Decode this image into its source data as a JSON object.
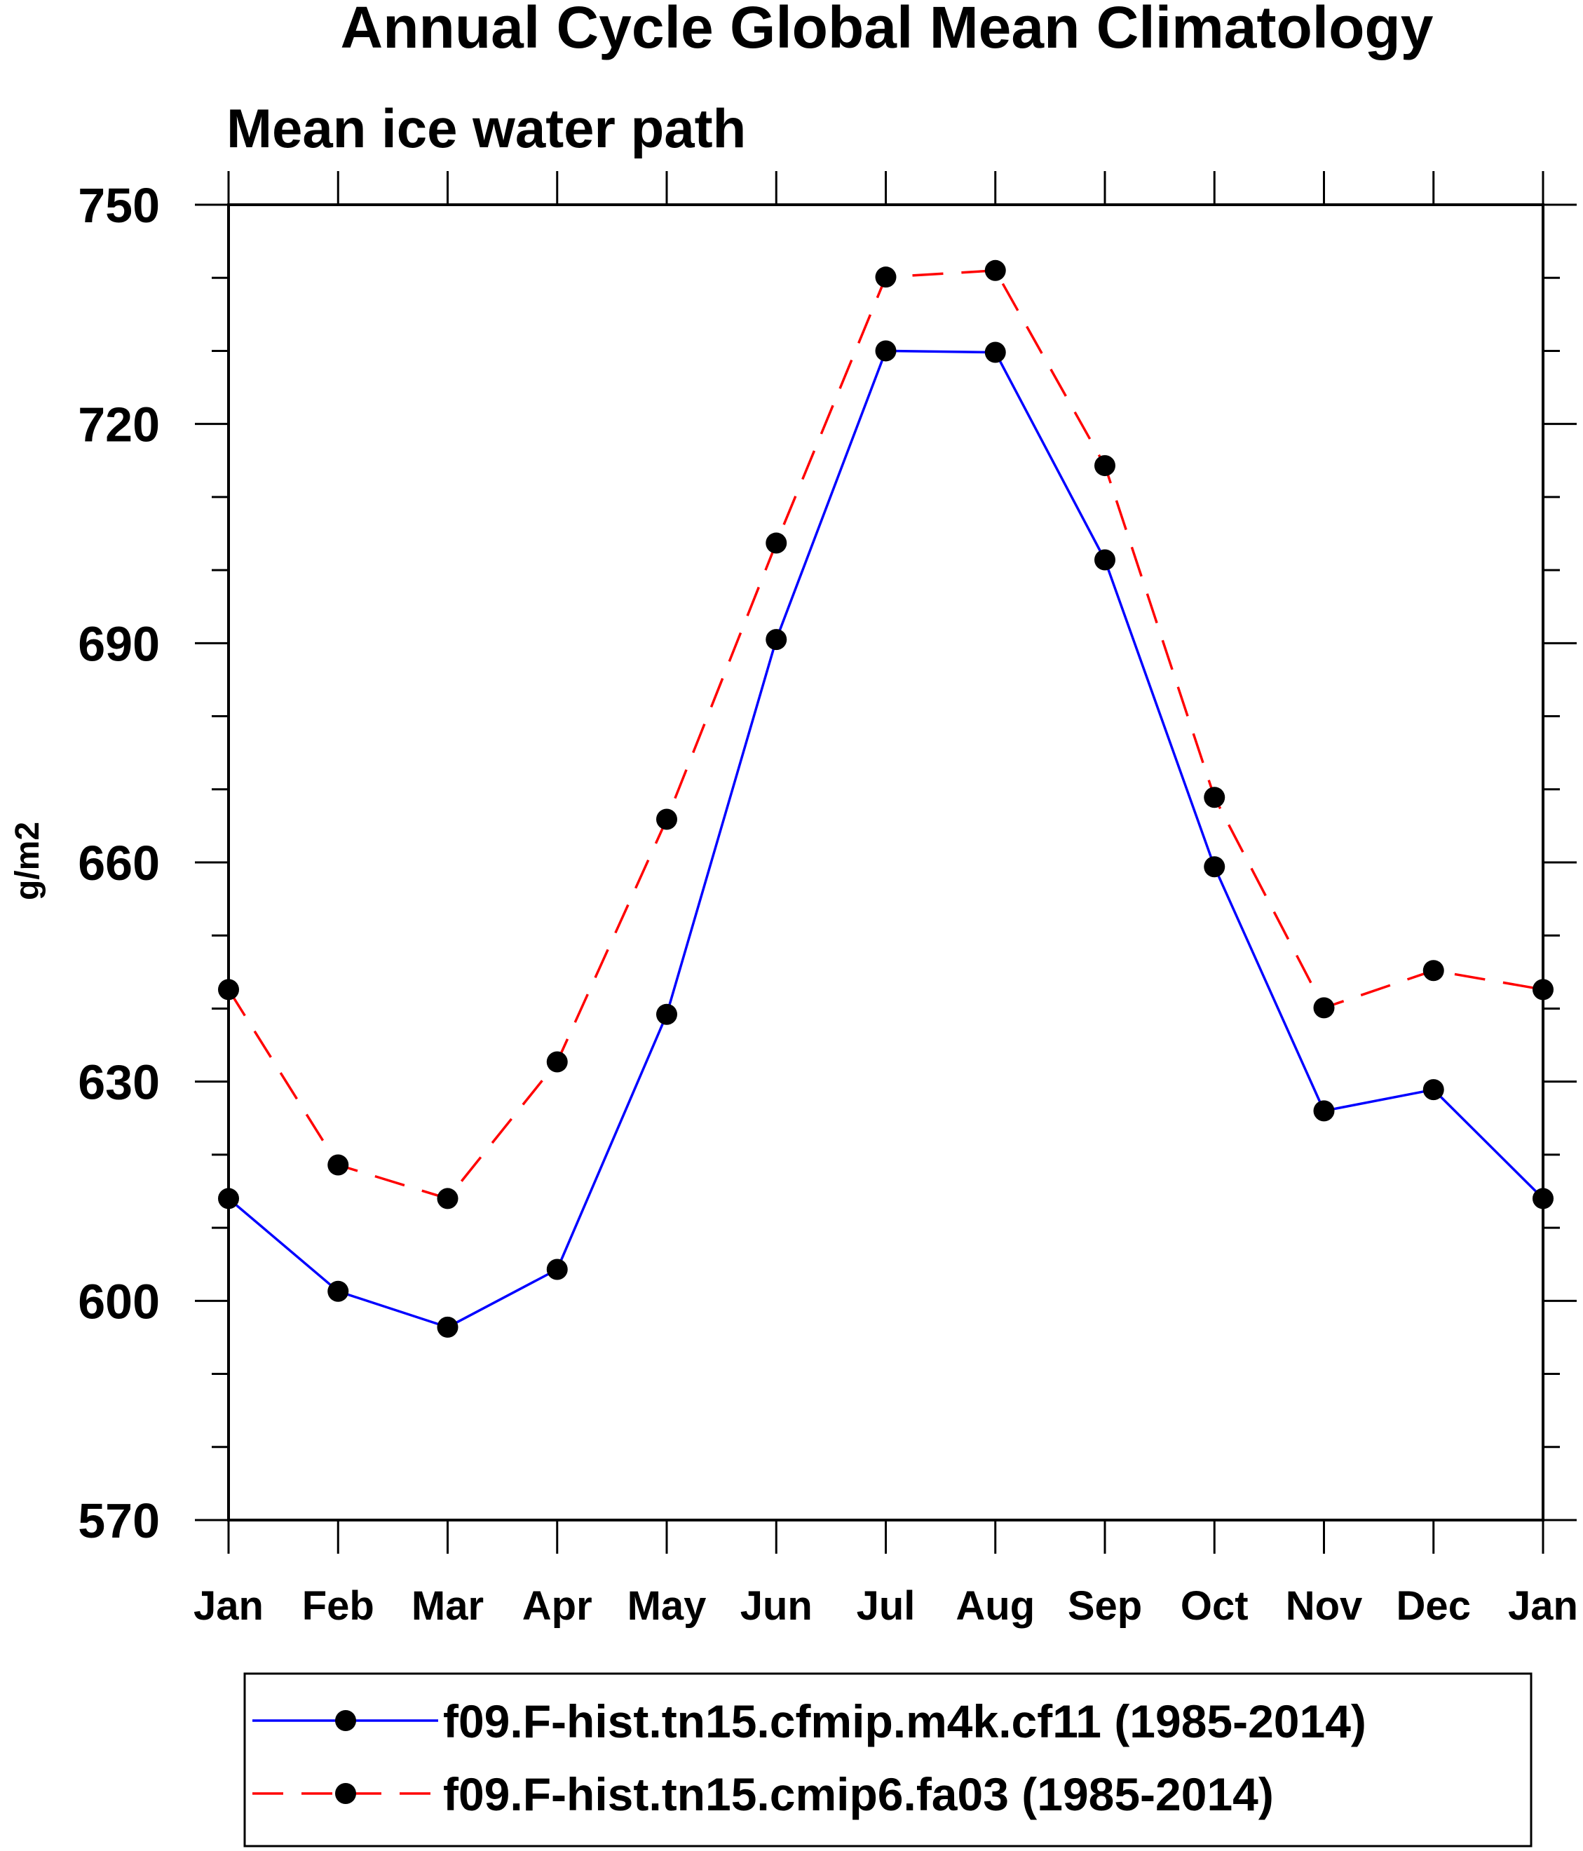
{
  "chart_data": {
    "type": "line",
    "title": "Annual Cycle Global Mean Climatology",
    "subtitle": "Mean ice water path",
    "xlabel": "",
    "ylabel": "g/m2",
    "ylim": [
      570,
      750
    ],
    "yticks": [
      570,
      600,
      630,
      660,
      690,
      720,
      750
    ],
    "categories": [
      "Jan",
      "Feb",
      "Mar",
      "Apr",
      "May",
      "Jun",
      "Jul",
      "Aug",
      "Sep",
      "Oct",
      "Nov",
      "Dec",
      "Jan"
    ],
    "legend_position": "bottom",
    "series": [
      {
        "name": "f09.F-hist.tn15.cfmip.m4k.cf11 (1985-2014)",
        "color": "#0000ff",
        "line_style": "solid",
        "values": [
          614.0,
          601.3,
          596.4,
          604.3,
          639.2,
          690.5,
          730.0,
          729.8,
          701.4,
          659.4,
          626.0,
          628.9,
          614.0
        ]
      },
      {
        "name": "f09.F-hist.tn15.cmip6.fa03 (1985-2014)",
        "color": "#ff0000",
        "line_style": "dashed",
        "values": [
          642.6,
          618.6,
          614.0,
          632.7,
          665.9,
          703.7,
          740.1,
          741.0,
          714.3,
          668.9,
          640.1,
          645.2,
          642.6
        ]
      }
    ]
  }
}
